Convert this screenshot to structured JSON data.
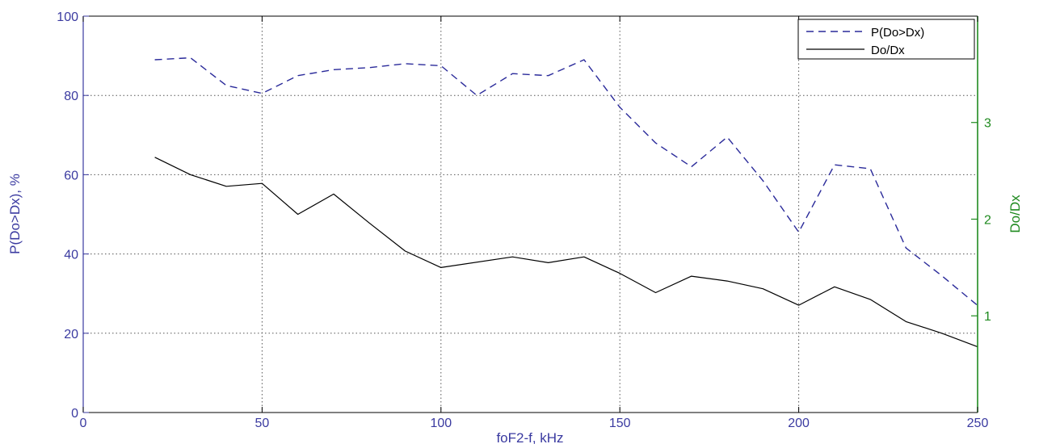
{
  "chart_data": {
    "type": "line",
    "title": "",
    "xlabel": "foF2-f, kHz",
    "ylabel_left": "P(Do>Dx), %",
    "ylabel_right": "Do/Dx",
    "xlim": [
      0,
      250
    ],
    "ylim_left": [
      0,
      100
    ],
    "ylim_right": [
      0,
      4.1
    ],
    "x_ticks": [
      0,
      50,
      100,
      150,
      200,
      250
    ],
    "y_ticks_left": [
      0,
      20,
      40,
      60,
      80,
      100
    ],
    "y_ticks_right": [
      1,
      2,
      3
    ],
    "grid": true,
    "legend_position": "top-right",
    "colors": {
      "left_axis": "#3a3aa0",
      "right_axis": "#1f8a1f",
      "p_series": "#2a2a9a",
      "ratio_series": "#000000",
      "grid": "#555555"
    },
    "series": [
      {
        "name": "P(Do>Dx)",
        "axis": "left",
        "style": "dashed",
        "points": [
          [
            20,
            89
          ],
          [
            30,
            89.5
          ],
          [
            40,
            82.5
          ],
          [
            50,
            80.5
          ],
          [
            60,
            85
          ],
          [
            70,
            86.5
          ],
          [
            80,
            87
          ],
          [
            90,
            88
          ],
          [
            100,
            87.5
          ],
          [
            110,
            80
          ],
          [
            120,
            85.5
          ],
          [
            130,
            85
          ],
          [
            140,
            89
          ],
          [
            150,
            77
          ],
          [
            160,
            68
          ],
          [
            170,
            62
          ],
          [
            180,
            69.5
          ],
          [
            190,
            58.5
          ],
          [
            200,
            45.5
          ],
          [
            210,
            62.5
          ],
          [
            220,
            61.5
          ],
          [
            230,
            41.5
          ],
          [
            240,
            34.5
          ],
          [
            250,
            27
          ]
        ]
      },
      {
        "name": "Do/Dx",
        "axis": "right",
        "style": "solid",
        "points": [
          [
            20,
            2.64
          ],
          [
            30,
            2.46
          ],
          [
            40,
            2.34
          ],
          [
            50,
            2.37
          ],
          [
            60,
            2.05
          ],
          [
            70,
            2.26
          ],
          [
            80,
            1.96
          ],
          [
            90,
            1.67
          ],
          [
            100,
            1.5
          ],
          [
            120,
            1.61
          ],
          [
            130,
            1.55
          ],
          [
            140,
            1.61
          ],
          [
            150,
            1.44
          ],
          [
            160,
            1.24
          ],
          [
            170,
            1.41
          ],
          [
            180,
            1.36
          ],
          [
            190,
            1.28
          ],
          [
            200,
            1.11
          ],
          [
            210,
            1.3
          ],
          [
            220,
            1.17
          ],
          [
            230,
            0.94
          ],
          [
            240,
            0.82
          ],
          [
            250,
            0.68
          ]
        ]
      }
    ]
  }
}
